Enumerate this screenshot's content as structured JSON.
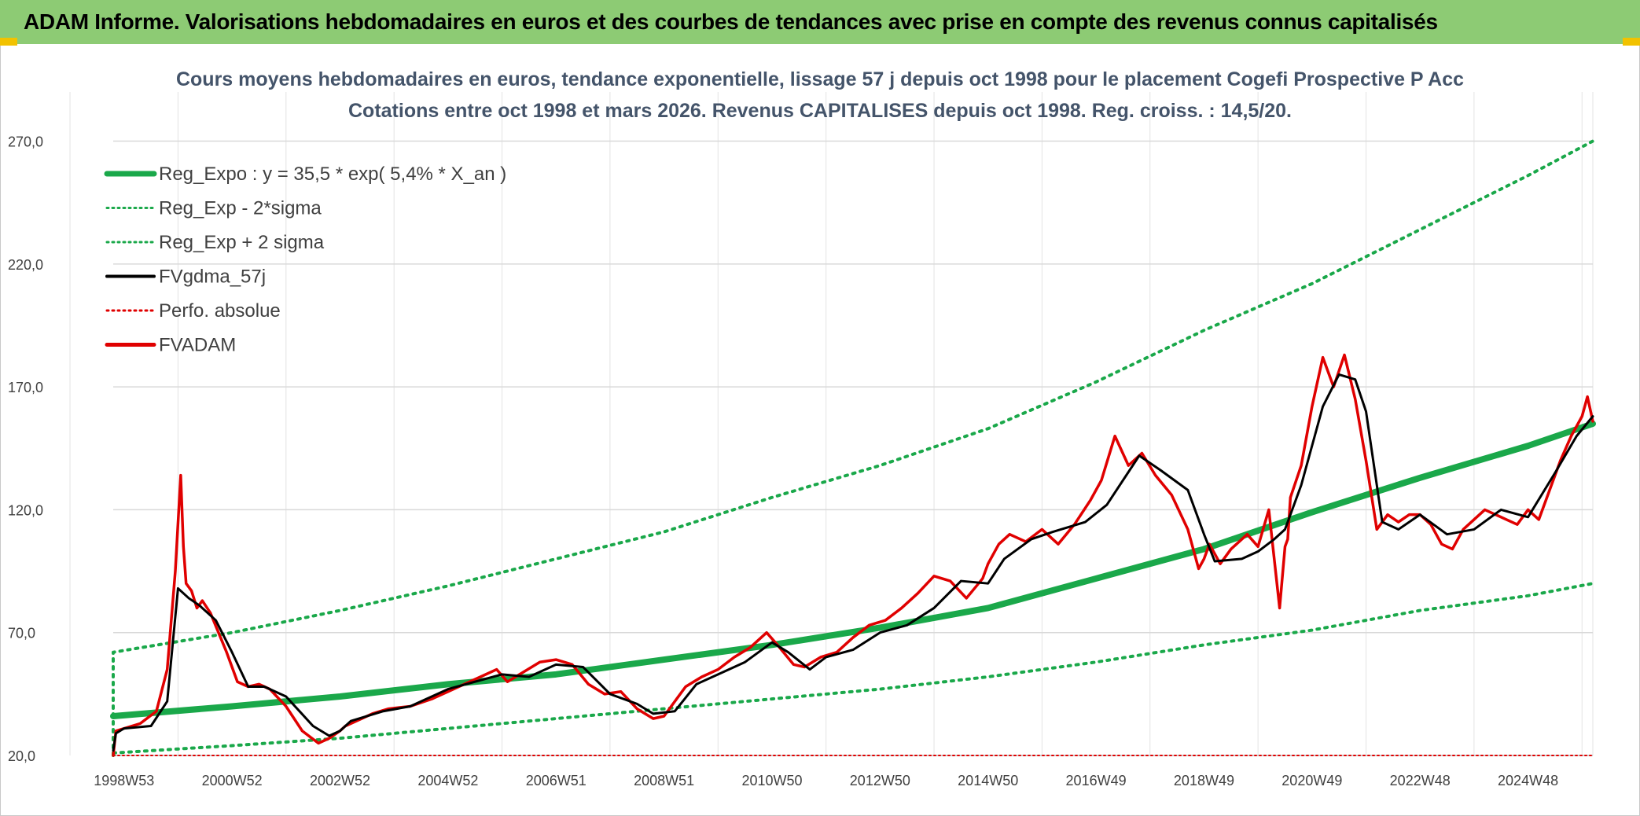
{
  "banner": {
    "title": "ADAM Informe. Valorisations hebdomadaires en euros et des courbes de tendances avec prise en compte des revenus connus capitalisés",
    "background": "#8dcb74",
    "corner_color": "#f2c200"
  },
  "chart_data": {
    "type": "line",
    "title_lines": [
      "Cours moyens hebdomadaires en euros, tendance exponentielle, lissage 57 j depuis oct 1998 pour le placement Cogefi Prospective P Acc",
      "Cotations entre oct 1998 et mars 2026. Revenus CAPITALISES depuis oct 1998. Reg. croiss. : 14,5/20."
    ],
    "x_range": [
      1998.8,
      2026.2
    ],
    "y_range": [
      20,
      290
    ],
    "y_ticks": [
      20,
      70,
      120,
      170,
      220,
      270
    ],
    "y_tick_labels": [
      "20,0",
      "70,0",
      "120,0",
      "170,0",
      "220,0",
      "270,0"
    ],
    "x_ticks": [
      {
        "label": "1998W53",
        "x": 1999.0
      },
      {
        "label": "2000W52",
        "x": 2001.0
      },
      {
        "label": "2002W52",
        "x": 2003.0
      },
      {
        "label": "2004W52",
        "x": 2005.0
      },
      {
        "label": "2006W51",
        "x": 2007.0
      },
      {
        "label": "2008W51",
        "x": 2009.0
      },
      {
        "label": "2010W50",
        "x": 2011.0
      },
      {
        "label": "2012W50",
        "x": 2013.0
      },
      {
        "label": "2014W50",
        "x": 2015.0
      },
      {
        "label": "2016W49",
        "x": 2017.0
      },
      {
        "label": "2018W49",
        "x": 2019.0
      },
      {
        "label": "2020W49",
        "x": 2021.0
      },
      {
        "label": "2022W48",
        "x": 2023.0
      },
      {
        "label": "2024W48",
        "x": 2025.0
      }
    ],
    "grid": true,
    "legend_position": "top-left",
    "legend": [
      {
        "label": "Reg_Expo : y = 35,5 * exp( 5,4% *  X_an )",
        "color": "#1aa84a",
        "style": "solid-thick"
      },
      {
        "label": "Reg_Exp - 2*sigma",
        "color": "#1aa84a",
        "style": "dotted"
      },
      {
        "label": "Reg_Exp + 2 sigma",
        "color": "#1aa84a",
        "style": "dotted"
      },
      {
        "label": "FVgdma_57j",
        "color": "#000000",
        "style": "solid"
      },
      {
        "label": "Perfo. absolue",
        "color": "#e00000",
        "style": "dotted"
      },
      {
        "label": "FVADAM",
        "color": "#e00000",
        "style": "solid-thick"
      }
    ],
    "series": [
      {
        "name": "Reg_Expo",
        "color": "#1aa84a",
        "x": [
          1998.8,
          2001,
          2003,
          2005,
          2007,
          2009,
          2011,
          2013,
          2015,
          2017,
          2019,
          2021,
          2023,
          2025,
          2026.2
        ],
        "y": [
          36,
          40,
          44,
          49,
          53,
          59,
          65,
          72,
          80,
          92,
          104,
          119,
          133,
          146,
          155
        ]
      },
      {
        "name": "Reg_Exp - 2*sigma",
        "color": "#1aa84a",
        "x": [
          1998.8,
          2001,
          2003,
          2005,
          2007,
          2009,
          2011,
          2013,
          2015,
          2017,
          2019,
          2021,
          2023,
          2025,
          2026.2
        ],
        "y": [
          21,
          24,
          27,
          31,
          35,
          39,
          43,
          47,
          52,
          58,
          65,
          71,
          79,
          85,
          90
        ]
      },
      {
        "name": "Reg_Exp + 2 sigma",
        "color": "#1aa84a",
        "x": [
          1998.8,
          2001,
          2003,
          2005,
          2007,
          2009,
          2011,
          2013,
          2015,
          2017,
          2019,
          2021,
          2023,
          2025,
          2026.2
        ],
        "y": [
          62,
          70,
          79,
          89,
          100,
          111,
          125,
          138,
          153,
          172,
          193,
          212,
          234,
          256,
          270
        ]
      },
      {
        "name": "FVgdma_57j",
        "color": "#000000",
        "x": [
          1998.8,
          1998.85,
          1999.0,
          1999.5,
          1999.8,
          2000.0,
          2000.2,
          2000.4,
          2000.7,
          2001.0,
          2001.3,
          2001.6,
          2002.0,
          2002.5,
          2002.8,
          2003.0,
          2003.2,
          2003.8,
          2004.3,
          2005.0,
          2005.5,
          2006.0,
          2006.5,
          2007.0,
          2007.5,
          2008.0,
          2008.5,
          2008.8,
          2009.2,
          2009.6,
          2010.0,
          2010.5,
          2011.0,
          2011.3,
          2011.7,
          2012.0,
          2012.5,
          2013.0,
          2013.5,
          2014.0,
          2014.5,
          2015.0,
          2015.3,
          2015.8,
          2016.2,
          2016.8,
          2017.2,
          2017.8,
          2018.2,
          2018.7,
          2019.0,
          2019.2,
          2019.7,
          2020.0,
          2020.3,
          2020.5,
          2020.8,
          2021.2,
          2021.5,
          2021.8,
          2022.0,
          2022.3,
          2022.6,
          2023.0,
          2023.5,
          2024.0,
          2024.5,
          2025.0,
          2025.5,
          2025.9,
          2026.2
        ],
        "y": [
          22,
          29,
          31,
          32,
          42,
          88,
          84,
          81,
          75,
          62,
          48,
          48,
          44,
          32,
          28,
          30,
          34,
          38,
          40,
          47,
          50,
          53,
          52,
          57,
          56,
          45,
          41,
          37,
          38,
          49,
          53,
          58,
          66,
          62,
          55,
          60,
          63,
          70,
          73,
          80,
          91,
          90,
          100,
          108,
          111,
          115,
          122,
          142,
          136,
          128,
          110,
          99,
          100,
          103,
          108,
          112,
          130,
          162,
          175,
          173,
          160,
          115,
          112,
          118,
          110,
          112,
          120,
          117,
          135,
          150,
          158
        ]
      },
      {
        "name": "Perfo. absolue",
        "color": "#e00000",
        "x": [
          1998.8,
          2026.2
        ],
        "y": [
          20,
          20
        ]
      },
      {
        "name": "FVADAM",
        "color": "#e00000",
        "x": [
          1998.8,
          1998.85,
          1999.0,
          1999.3,
          1999.6,
          1999.8,
          1999.95,
          2000.05,
          2000.1,
          2000.15,
          2000.25,
          2000.35,
          2000.45,
          2000.6,
          2000.75,
          2000.9,
          2001.1,
          2001.3,
          2001.5,
          2001.7,
          2002.0,
          2002.3,
          2002.6,
          2002.8,
          2003.0,
          2003.1,
          2003.3,
          2003.6,
          2003.9,
          2004.3,
          2004.7,
          2005.0,
          2005.3,
          2005.6,
          2005.9,
          2006.1,
          2006.4,
          2006.7,
          2007.0,
          2007.3,
          2007.6,
          2007.9,
          2008.2,
          2008.5,
          2008.8,
          2009.0,
          2009.2,
          2009.4,
          2009.7,
          2010.0,
          2010.3,
          2010.6,
          2010.9,
          2011.1,
          2011.4,
          2011.6,
          2011.9,
          2012.2,
          2012.5,
          2012.8,
          2013.1,
          2013.4,
          2013.7,
          2014.0,
          2014.3,
          2014.6,
          2014.9,
          2015.0,
          2015.2,
          2015.4,
          2015.7,
          2016.0,
          2016.3,
          2016.6,
          2016.9,
          2017.1,
          2017.35,
          2017.6,
          2017.85,
          2018.1,
          2018.4,
          2018.7,
          2018.9,
          2019.0,
          2019.1,
          2019.3,
          2019.5,
          2019.8,
          2020.0,
          2020.2,
          2020.4,
          2020.5,
          2020.55,
          2020.6,
          2020.8,
          2021.0,
          2021.2,
          2021.4,
          2021.6,
          2021.8,
          2022.0,
          2022.2,
          2022.4,
          2022.6,
          2022.8,
          2023.0,
          2023.2,
          2023.4,
          2023.6,
          2023.8,
          2024.0,
          2024.2,
          2024.4,
          2024.6,
          2024.8,
          2025.0,
          2025.2,
          2025.4,
          2025.6,
          2025.8,
          2026.0,
          2026.1,
          2026.2
        ],
        "y": [
          20,
          30,
          31,
          33,
          38,
          55,
          95,
          134,
          105,
          90,
          87,
          80,
          83,
          78,
          70,
          62,
          50,
          48,
          49,
          47,
          40,
          30,
          25,
          27,
          30,
          32,
          34,
          37,
          39,
          40,
          43,
          46,
          49,
          52,
          55,
          50,
          54,
          58,
          59,
          57,
          49,
          45,
          46,
          39,
          35,
          36,
          42,
          48,
          52,
          55,
          60,
          64,
          70,
          65,
          57,
          56,
          60,
          62,
          68,
          73,
          75,
          80,
          86,
          93,
          91,
          84,
          92,
          98,
          106,
          110,
          107,
          112,
          106,
          114,
          124,
          132,
          150,
          138,
          143,
          134,
          126,
          112,
          96,
          100,
          106,
          98,
          104,
          110,
          105,
          120,
          80,
          105,
          108,
          125,
          138,
          162,
          182,
          170,
          183,
          165,
          140,
          112,
          118,
          115,
          118,
          118,
          114,
          106,
          104,
          112,
          116,
          120,
          118,
          116,
          114,
          120,
          116,
          128,
          140,
          150,
          158,
          166,
          156
        ]
      }
    ]
  }
}
